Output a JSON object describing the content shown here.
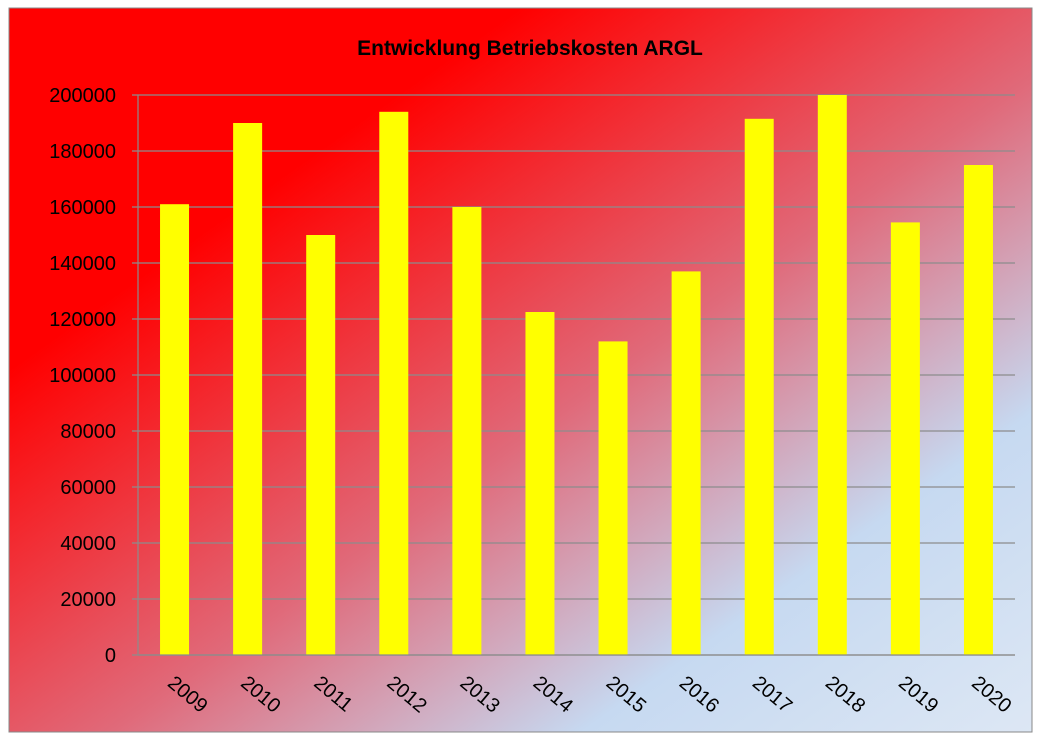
{
  "chart_data": {
    "type": "bar",
    "title": "Entwicklung Betriebskosten ARGL",
    "categories": [
      "2009",
      "2010",
      "2011",
      "2012",
      "2013",
      "2014",
      "2015",
      "2016",
      "2017",
      "2018",
      "2019",
      "2020"
    ],
    "values": [
      161000,
      190000,
      150000,
      194000,
      160000,
      122500,
      112000,
      137000,
      191500,
      200000,
      154500,
      175000
    ],
    "color": "#ffff00",
    "ylim": [
      0,
      200000
    ],
    "yticks": [
      0,
      20000,
      40000,
      60000,
      80000,
      100000,
      120000,
      140000,
      160000,
      180000,
      200000
    ],
    "grid": true
  }
}
